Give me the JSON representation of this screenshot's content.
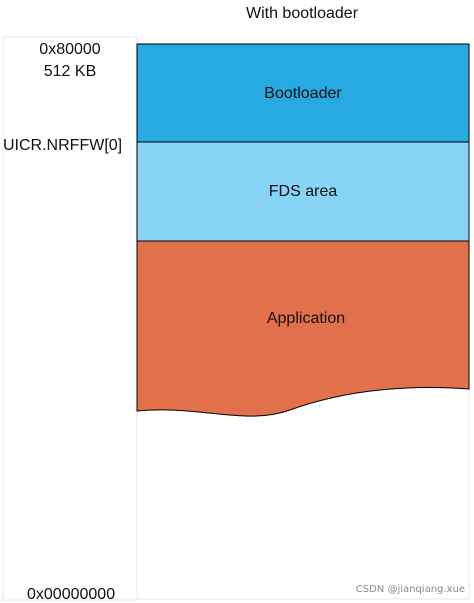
{
  "title": "With bootloader",
  "address_labels": {
    "top_address": "0x80000",
    "top_size": "512 KB",
    "uicr": "UICR.NRFFW[0]",
    "bottom_address": "0x00000000"
  },
  "regions": [
    {
      "label": "Bootloader",
      "color": "#27A9E1"
    },
    {
      "label": "FDS area",
      "color": "#87D4F7"
    },
    {
      "label": "Application",
      "color": "#E2704B"
    }
  ],
  "colors": {
    "border": "#000000",
    "panel_border": "#E4E8EE"
  },
  "watermark": "CSDN @jianqiang.xue"
}
